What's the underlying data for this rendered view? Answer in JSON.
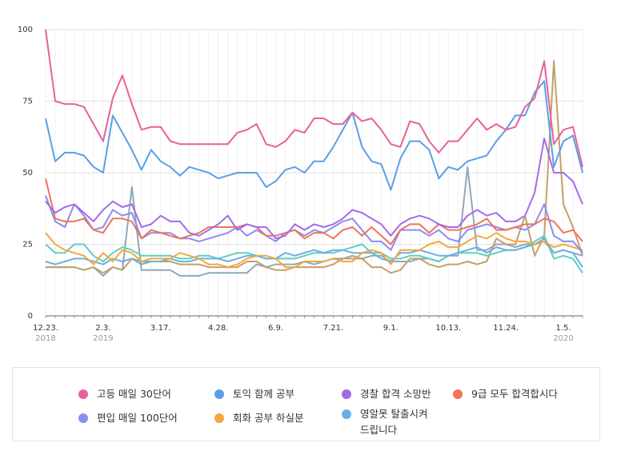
{
  "chart_data": {
    "type": "line",
    "title": "",
    "xlabel": "",
    "ylabel": "",
    "ylim": [
      0,
      100
    ],
    "yticks": [
      0,
      25,
      50,
      75,
      100
    ],
    "grid": true,
    "legend_placement": "bottom",
    "x_ticks": [
      {
        "index": 0,
        "label": "12.23.",
        "sub": "2018"
      },
      {
        "index": 6,
        "label": "2.3.",
        "sub": "2019"
      },
      {
        "index": 12,
        "label": "3.17.",
        "sub": ""
      },
      {
        "index": 18,
        "label": "4.28.",
        "sub": ""
      },
      {
        "index": 24,
        "label": "6.9.",
        "sub": ""
      },
      {
        "index": 30,
        "label": "7.21.",
        "sub": ""
      },
      {
        "index": 36,
        "label": "9.1.",
        "sub": ""
      },
      {
        "index": 42,
        "label": "10.13.",
        "sub": ""
      },
      {
        "index": 48,
        "label": "11.24.",
        "sub": ""
      },
      {
        "index": 54,
        "label": "1.5.",
        "sub": "2020"
      }
    ],
    "series": [
      {
        "name": "고등 매일 30단어",
        "color": "#e8609a",
        "values": [
          100,
          75,
          74,
          74,
          73,
          67,
          61,
          76,
          84,
          74,
          65,
          66,
          66,
          61,
          60,
          60,
          60,
          60,
          60,
          60,
          64,
          65,
          67,
          60,
          59,
          61,
          65,
          64,
          69,
          69,
          67,
          67,
          71,
          68,
          69,
          65,
          60,
          59,
          68,
          67,
          61,
          57,
          61,
          61,
          65,
          69,
          65,
          67,
          65,
          66,
          73,
          76,
          89,
          60,
          65,
          66,
          52
        ]
      },
      {
        "name": "토익 함께 공부",
        "color": "#5b9ee6",
        "values": [
          69,
          54,
          57,
          57,
          56,
          52,
          50,
          70,
          64,
          58,
          51,
          58,
          54,
          52,
          49,
          52,
          51,
          50,
          48,
          49,
          50,
          50,
          50,
          45,
          47,
          51,
          52,
          50,
          54,
          54,
          59,
          65,
          71,
          59,
          54,
          53,
          44,
          55,
          61,
          61,
          58,
          48,
          52,
          51,
          54,
          55,
          56,
          61,
          65,
          70,
          70,
          78,
          82,
          52,
          61,
          63,
          50
        ]
      },
      {
        "name": "경찰 합격 소망반",
        "color": "#a46be8",
        "values": [
          40,
          36,
          38,
          39,
          36,
          33,
          37,
          40,
          38,
          39,
          31,
          32,
          35,
          33,
          33,
          29,
          28,
          30,
          32,
          35,
          30,
          32,
          31,
          31,
          27,
          28,
          32,
          30,
          32,
          31,
          32,
          34,
          37,
          36,
          34,
          32,
          28,
          32,
          34,
          35,
          34,
          32,
          31,
          31,
          35,
          37,
          35,
          36,
          33,
          33,
          35,
          43,
          62,
          50,
          50,
          47,
          39
        ]
      },
      {
        "name": "9급 모두 합격합시다",
        "color": "#f0735a",
        "values": [
          48,
          34,
          33,
          33,
          34,
          30,
          29,
          34,
          34,
          33,
          27,
          30,
          29,
          28,
          27,
          28,
          29,
          31,
          31,
          31,
          31,
          32,
          31,
          28,
          28,
          29,
          30,
          27,
          29,
          29,
          27,
          30,
          31,
          28,
          31,
          28,
          25,
          30,
          32,
          32,
          29,
          32,
          30,
          30,
          31,
          32,
          34,
          30,
          30,
          31,
          32,
          32,
          34,
          33,
          29,
          30,
          26
        ]
      },
      {
        "name": "편입 매일 100단어",
        "color": "#8c8cf0",
        "values": [
          42,
          33,
          31,
          39,
          35,
          30,
          31,
          37,
          35,
          36,
          27,
          29,
          29,
          29,
          27,
          27,
          26,
          27,
          28,
          29,
          31,
          28,
          30,
          28,
          26,
          29,
          30,
          28,
          30,
          29,
          31,
          33,
          34,
          30,
          26,
          26,
          23,
          30,
          30,
          30,
          28,
          30,
          27,
          26,
          30,
          31,
          32,
          31,
          30,
          31,
          30,
          32,
          39,
          28,
          26,
          26,
          22
        ]
      },
      {
        "name": "회화 공부 하실분",
        "color": "#f5a73b",
        "values": [
          29,
          25,
          23,
          22,
          21,
          18,
          22,
          19,
          23,
          22,
          19,
          20,
          20,
          20,
          22,
          21,
          20,
          18,
          18,
          17,
          18,
          20,
          21,
          21,
          20,
          17,
          17,
          19,
          19,
          19,
          20,
          19,
          19,
          22,
          23,
          22,
          18,
          23,
          23,
          23,
          25,
          26,
          24,
          24,
          26,
          28,
          27,
          29,
          27,
          26,
          26,
          25,
          26,
          24,
          25,
          24,
          23
        ]
      },
      {
        "name": "영알못 탈출시켜\n드립니다",
        "color": "#6ab0e6",
        "values": [
          19,
          18,
          19,
          20,
          20,
          19,
          18,
          20,
          19,
          20,
          18,
          19,
          19,
          20,
          19,
          19,
          20,
          20,
          20,
          19,
          20,
          21,
          21,
          20,
          20,
          22,
          21,
          22,
          23,
          22,
          23,
          23,
          22,
          22,
          22,
          20,
          19,
          22,
          22,
          23,
          22,
          21,
          21,
          22,
          23,
          24,
          22,
          24,
          23,
          23,
          24,
          25,
          27,
          22,
          23,
          22,
          17
        ]
      },
      {
        "name": "",
        "color": "#5fcfbf",
        "values": [
          25,
          22,
          22,
          25,
          25,
          21,
          19,
          22,
          24,
          23,
          21,
          21,
          21,
          21,
          20,
          20,
          21,
          21,
          20,
          21,
          22,
          22,
          21,
          20,
          20,
          20,
          20,
          21,
          22,
          22,
          22,
          23,
          24,
          25,
          22,
          22,
          20,
          20,
          21,
          21,
          20,
          19,
          21,
          22,
          22,
          22,
          21,
          22,
          23,
          23,
          24,
          26,
          28,
          20,
          21,
          20,
          15
        ]
      },
      {
        "name": "",
        "color": "#c4a068",
        "values": [
          17,
          17,
          17,
          17,
          16,
          17,
          15,
          17,
          16,
          20,
          19,
          19,
          19,
          19,
          18,
          18,
          18,
          17,
          17,
          17,
          17,
          19,
          19,
          17,
          16,
          16,
          17,
          17,
          17,
          17,
          18,
          20,
          21,
          20,
          17,
          17,
          15,
          16,
          20,
          20,
          18,
          17,
          18,
          18,
          19,
          18,
          19,
          27,
          25,
          25,
          35,
          21,
          28,
          89,
          39,
          31,
          21
        ]
      },
      {
        "name": "",
        "color": "#8fa8b8",
        "values": [
          17,
          17,
          17,
          17,
          16,
          17,
          14,
          17,
          16,
          45,
          16,
          16,
          16,
          16,
          14,
          14,
          14,
          15,
          15,
          15,
          15,
          15,
          18,
          17,
          18,
          18,
          18,
          19,
          18,
          19,
          20,
          20,
          20,
          20,
          21,
          21,
          19,
          19,
          19,
          20,
          20,
          19,
          21,
          21,
          52,
          23,
          23,
          25,
          25,
          24,
          25,
          25,
          26,
          22,
          23,
          22,
          21
        ]
      }
    ]
  },
  "legend": [
    {
      "name": "고등 매일 30단어",
      "color": "#e8609a"
    },
    {
      "name": "토익 함께 공부",
      "color": "#5b9ee6"
    },
    {
      "name": "경찰 합격 소망반",
      "color": "#a46be8"
    },
    {
      "name": "9급 모두 합격합시다",
      "color": "#f0735a"
    },
    {
      "name": "편입 매일 100단어",
      "color": "#8c8cf0"
    },
    {
      "name": "회화 공부 하실분",
      "color": "#f5a73b"
    },
    {
      "name": "영알못 탈출시켜\n드립니다",
      "color": "#6ab0e6"
    }
  ]
}
